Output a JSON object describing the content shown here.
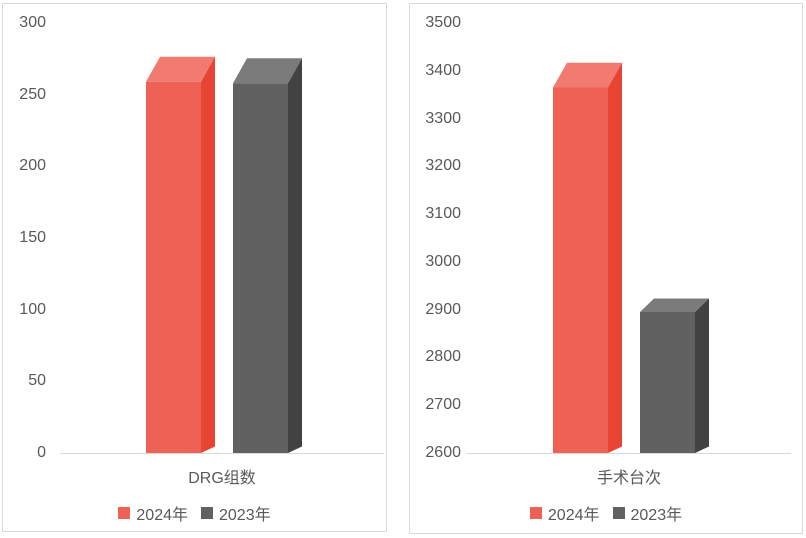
{
  "page": {
    "background": "#ffffff",
    "panel_border_color": "#d9d9d9",
    "text_color": "#595959"
  },
  "chart_data": [
    {
      "type": "bar",
      "title": "",
      "categories": [
        "DRG组数"
      ],
      "series": [
        {
          "name": "2024年",
          "values": [
            259
          ],
          "color": "#ee6256",
          "color_top": "#f17b71",
          "color_side": "#e84434"
        },
        {
          "name": "2023年",
          "values": [
            258
          ],
          "color": "#616161",
          "color_top": "#7b7b7b",
          "color_side": "#424242"
        }
      ],
      "ylim": [
        0,
        300
      ],
      "ytick_step": 50,
      "yticks": [
        0,
        50,
        100,
        150,
        200,
        250,
        300
      ],
      "grid": false,
      "legend_position": "bottom",
      "bar_style": "3d-box"
    },
    {
      "type": "bar",
      "title": "",
      "categories": [
        "手术台次"
      ],
      "series": [
        {
          "name": "2024年",
          "values": [
            3365
          ],
          "color": "#ee6256",
          "color_top": "#f17b71",
          "color_side": "#e84434"
        },
        {
          "name": "2023年",
          "values": [
            2895
          ],
          "color": "#616161",
          "color_top": "#7b7b7b",
          "color_side": "#424242"
        }
      ],
      "ylim": [
        2600,
        3500
      ],
      "ytick_step": 100,
      "yticks": [
        2600,
        2700,
        2800,
        2900,
        3000,
        3100,
        3200,
        3300,
        3400,
        3500
      ],
      "grid": false,
      "legend_position": "bottom",
      "bar_style": "3d-box"
    }
  ]
}
